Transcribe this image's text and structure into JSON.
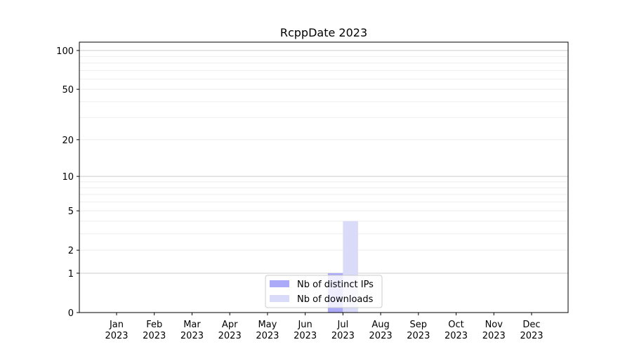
{
  "chart_data": {
    "type": "bar",
    "title": "RcppDate 2023",
    "xlabel": "",
    "ylabel": "",
    "yscale": "log(y+1)",
    "ylim": [
      0,
      116
    ],
    "yticks": [
      0,
      1,
      2,
      5,
      10,
      20,
      50,
      100
    ],
    "categories": [
      "Jan\n2023",
      "Feb\n2023",
      "Mar\n2023",
      "Apr\n2023",
      "May\n2023",
      "Jun\n2023",
      "Jul\n2023",
      "Aug\n2023",
      "Sep\n2023",
      "Oct\n2023",
      "Nov\n2023",
      "Dec\n2023"
    ],
    "series": [
      {
        "name": "Nb of distinct IPs",
        "color": "#aaaaf8",
        "values": [
          0,
          0,
          0,
          0,
          0,
          0,
          1,
          0,
          0,
          0,
          0,
          0
        ]
      },
      {
        "name": "Nb of downloads",
        "color": "#dadaf9",
        "values": [
          0,
          0,
          0,
          0,
          0,
          0,
          4,
          0,
          0,
          0,
          0,
          0
        ]
      }
    ],
    "grid": "y major and minor",
    "legend": "lower-center"
  }
}
